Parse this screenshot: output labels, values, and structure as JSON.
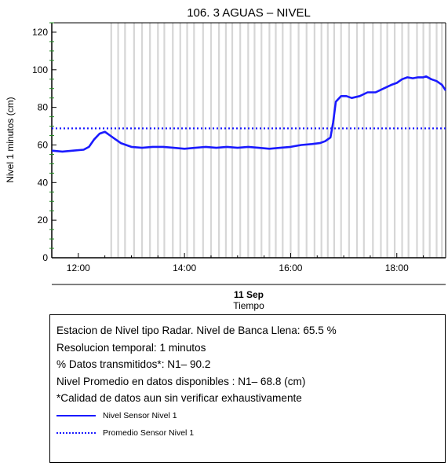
{
  "chart_data": {
    "type": "line",
    "title": "106. 3 AGUAS – NIVEL",
    "ylabel": "Nivel 1 minutos (cm)",
    "xlabel_date": "11 Sep",
    "xlabel": "Tiempo",
    "x_unit": "hours",
    "xlim": [
      11.5,
      18.92
    ],
    "ylim": [
      0,
      125
    ],
    "yticks": [
      0,
      20,
      40,
      60,
      80,
      100,
      120
    ],
    "xticks": [
      {
        "value": 12,
        "label": "12:00"
      },
      {
        "value": 14,
        "label": "14:00"
      },
      {
        "value": 16,
        "label": "16:00"
      },
      {
        "value": 18,
        "label": "18:00"
      }
    ],
    "series": [
      {
        "name": "Nivel Sensor Nivel 1",
        "style": "solid",
        "color": "#1a1aff",
        "x": [
          11.5,
          11.7,
          11.9,
          12.1,
          12.2,
          12.3,
          12.4,
          12.5,
          12.55,
          12.6,
          12.7,
          12.8,
          12.9,
          13.0,
          13.2,
          13.4,
          13.6,
          13.8,
          14.0,
          14.2,
          14.4,
          14.6,
          14.8,
          15.0,
          15.2,
          15.4,
          15.6,
          15.8,
          16.0,
          16.2,
          16.4,
          16.55,
          16.65,
          16.75,
          16.8,
          16.85,
          16.95,
          17.05,
          17.15,
          17.3,
          17.45,
          17.6,
          17.75,
          17.9,
          18.0,
          18.1,
          18.2,
          18.3,
          18.4,
          18.5,
          18.55,
          18.65,
          18.75,
          18.85,
          18.92
        ],
        "y": [
          57,
          56.5,
          57,
          57.5,
          59,
          63,
          66,
          67,
          66,
          65,
          63,
          61,
          60,
          59,
          58.5,
          59,
          59,
          58.5,
          58,
          58.5,
          59,
          58.5,
          59,
          58.5,
          59,
          58.5,
          58,
          58.5,
          59,
          60,
          60.5,
          61,
          62,
          64,
          72,
          83,
          86,
          86,
          85,
          86,
          88,
          88,
          90,
          92,
          93,
          95,
          96,
          95.5,
          96,
          96,
          96.5,
          95,
          94,
          92,
          89
        ]
      },
      {
        "name": "Promedio Sensor Nivel 1",
        "style": "dotted",
        "color": "#1a1aff",
        "x": [
          11.5,
          18.92
        ],
        "y": [
          68.8,
          68.8
        ]
      }
    ],
    "gap_markers_x": [
      12.62,
      12.75,
      12.88,
      13.05,
      13.2,
      13.35,
      13.5,
      13.62,
      13.78,
      13.92,
      14.05,
      14.18,
      14.35,
      14.5,
      14.65,
      14.78,
      14.9,
      15.05,
      15.2,
      15.32,
      15.45,
      15.6,
      15.72,
      15.85,
      16.0,
      16.15,
      16.3,
      16.45,
      16.58,
      16.7,
      16.82,
      16.95,
      17.1,
      17.25,
      17.38,
      17.55,
      17.7,
      17.82,
      17.96,
      18.1,
      18.22,
      18.38,
      18.5,
      18.62,
      18.75,
      18.85
    ]
  },
  "info": {
    "line1": "Estacion de Nivel tipo Radar. Nivel de Banca Llena: 65.5 %",
    "line2": "Resolucion temporal: 1 minutos",
    "line3": "% Datos transmitidos*: N1– 90.2",
    "line4": "Nivel Promedio en datos disponibles : N1– 68.8 (cm)",
    "line5": "*Calidad de datos aun sin verificar exhaustivamente"
  },
  "legend": {
    "solid_label": "Nivel Sensor Nivel 1",
    "dotted_label": "Promedio Sensor Nivel 1"
  }
}
